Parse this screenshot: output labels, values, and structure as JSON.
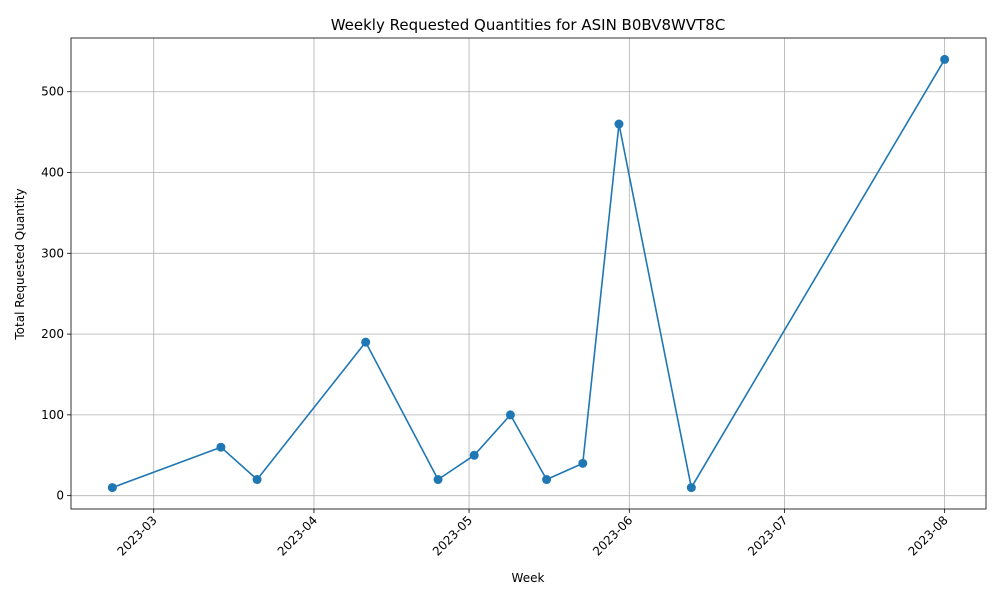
{
  "chart_data": {
    "type": "line",
    "title": "Weekly Requested Quantities for ASIN B0BV8WVT8C",
    "xlabel": "Week",
    "ylabel": "Total Requested Quantity",
    "x": [
      "2023-02-21",
      "2023-03-14",
      "2023-03-21",
      "2023-04-11",
      "2023-04-25",
      "2023-05-02",
      "2023-05-09",
      "2023-05-16",
      "2023-05-23",
      "2023-05-30",
      "2023-06-13",
      "2023-08-01"
    ],
    "series": [
      {
        "values": [
          10,
          60,
          20,
          190,
          20,
          50,
          100,
          20,
          40,
          460,
          10,
          540
        ]
      }
    ],
    "xticks": [
      {
        "date": "2023-03-01",
        "label": "2023-03"
      },
      {
        "date": "2023-04-01",
        "label": "2023-04"
      },
      {
        "date": "2023-05-01",
        "label": "2023-05"
      },
      {
        "date": "2023-06-01",
        "label": "2023-06"
      },
      {
        "date": "2023-07-01",
        "label": "2023-07"
      },
      {
        "date": "2023-08-01",
        "label": "2023-08"
      }
    ],
    "yticks": [
      0,
      100,
      200,
      300,
      400,
      500
    ],
    "xlim": [
      "2023-02-13",
      "2023-08-09"
    ],
    "ylim": [
      -16.5,
      566.5
    ],
    "grid": true,
    "colors": {
      "line": "#1f77b4",
      "grid": "#b0b0b0",
      "axes": "#000000"
    }
  }
}
